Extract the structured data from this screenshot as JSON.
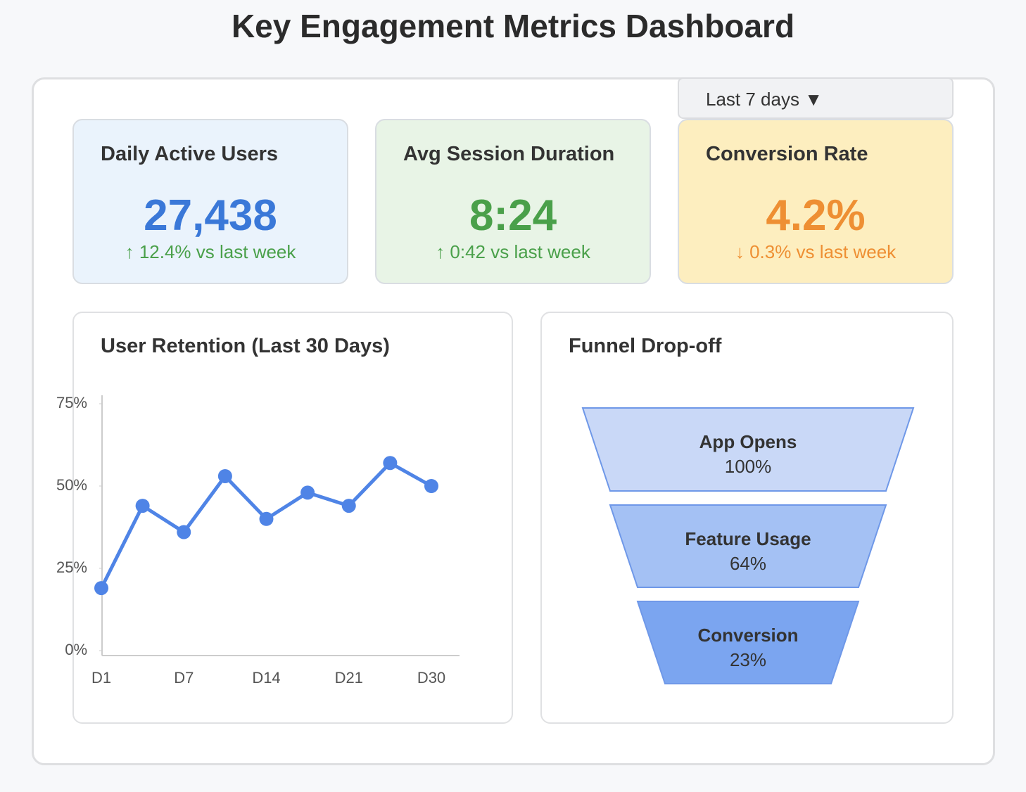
{
  "header": {
    "title": "Key Engagement Metrics Dashboard"
  },
  "filter": {
    "label": "Last 7 days ▼"
  },
  "kpis": [
    {
      "title": "Daily Active Users",
      "value": "27,438",
      "change": "↑ 12.4% vs last week",
      "value_color": "#3a78d8",
      "change_color": "#4aa04a",
      "background": "#eaf3fc"
    },
    {
      "title": "Avg Session Duration",
      "value": "8:24",
      "change": "↑ 0:42 vs last week",
      "value_color": "#4aa04a",
      "change_color": "#4aa04a",
      "background": "#e8f4e6"
    },
    {
      "title": "Conversion Rate",
      "value": "4.2%",
      "change": "↓ 0.3% vs last week",
      "value_color": "#ee8f33",
      "change_color": "#ee8f33",
      "background": "#fdeebf"
    }
  ],
  "chart_data": {
    "type": "line",
    "title": "User Retention (Last 30 Days)",
    "categories": [
      "D1",
      null,
      "D7",
      null,
      "D14",
      null,
      "D21",
      null,
      "D30"
    ],
    "values": [
      19,
      44,
      36,
      53,
      40,
      48,
      44,
      57,
      50
    ],
    "color": "#4f84e6",
    "ylim": [
      0,
      75
    ],
    "yticks": [
      {
        "value": 0,
        "label": "0%"
      },
      {
        "value": 25,
        "label": "25%"
      },
      {
        "value": 50,
        "label": "50%"
      },
      {
        "value": 75,
        "label": "75%"
      }
    ]
  },
  "funnel": {
    "title": "Funnel Drop-off",
    "stages": [
      {
        "label": "App Opens",
        "value": "100%",
        "color": "#c9d8f7"
      },
      {
        "label": "Feature Usage",
        "value": "64%",
        "color": "#a4c1f4"
      },
      {
        "label": "Conversion",
        "value": "23%",
        "color": "#7ba5f0"
      }
    ]
  }
}
